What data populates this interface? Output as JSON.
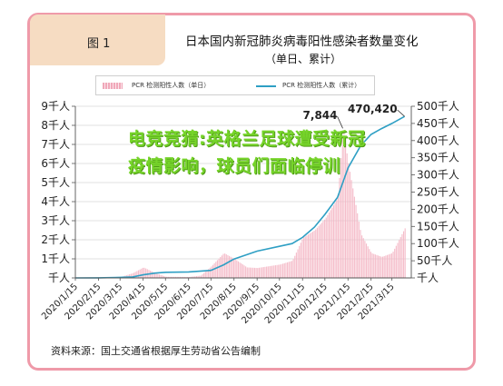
{
  "figure_label": "图 1",
  "chart_data": {
    "type": "bar+line",
    "title": "日本国内新冠肺炎病毒阳性感染者数量变化",
    "subtitle": "（单日、累计）",
    "legend": [
      {
        "label": "PCR 检测阳性人数（单日）",
        "kind": "bar",
        "color": "#f0a8b9"
      },
      {
        "label": "PCR 检测阳性人数（累计）",
        "kind": "line",
        "color": "#2e9fc4"
      }
    ],
    "x_tick_labels": [
      "2020/1/15",
      "2020/2/15",
      "2020/3/15",
      "2020/4/15",
      "2020/5/15",
      "2020/6/15",
      "2020/7/15",
      "2020/8/15",
      "2020/9/15",
      "2020/10/15",
      "2020/11/15",
      "2020/12/15",
      "2021/1/15",
      "2021/2/15",
      "2021/3/15"
    ],
    "left_axis": {
      "tick_labels": [
        "千人",
        "1千人",
        "2千人",
        "3千人",
        "4千人",
        "5千人",
        "6千人",
        "7千人",
        "8千人",
        "9千人"
      ],
      "ylim": [
        0,
        9000
      ]
    },
    "right_axis": {
      "tick_labels": [
        "千人",
        "50千人",
        "100千人",
        "150千人",
        "200千人",
        "250千人",
        "300千人",
        "350千人",
        "400千人",
        "450千人",
        "500千人"
      ],
      "ylim": [
        0,
        500000
      ]
    },
    "daily_series": {
      "name": "PCR 检测阳性人数（单日）",
      "x": [
        "2020/1/15",
        "2020/2/15",
        "2020/3/15",
        "2020/4/1",
        "2020/4/15",
        "2020/5/1",
        "2020/5/15",
        "2020/6/15",
        "2020/7/1",
        "2020/7/15",
        "2020/8/1",
        "2020/8/15",
        "2020/9/1",
        "2020/9/15",
        "2020/10/15",
        "2020/11/1",
        "2020/11/15",
        "2020/12/1",
        "2020/12/15",
        "2021/1/1",
        "2021/1/8",
        "2021/1/15",
        "2021/2/1",
        "2021/2/15",
        "2021/3/1",
        "2021/3/15",
        "2021/4/1"
      ],
      "values": [
        0,
        5,
        40,
        250,
        550,
        250,
        60,
        50,
        120,
        600,
        1300,
        1000,
        550,
        520,
        700,
        900,
        2100,
        2500,
        3100,
        4200,
        7844,
        6000,
        2300,
        1300,
        1100,
        1300,
        2600
      ]
    },
    "cumulative_series": {
      "name": "PCR 检测阳性人数（累计）",
      "x": [
        "2020/1/15",
        "2020/2/15",
        "2020/3/15",
        "2020/4/1",
        "2020/4/15",
        "2020/5/1",
        "2020/5/15",
        "2020/6/15",
        "2020/7/15",
        "2020/8/1",
        "2020/8/15",
        "2020/9/15",
        "2020/10/15",
        "2020/11/1",
        "2020/11/15",
        "2020/12/1",
        "2020/12/15",
        "2021/1/1",
        "2021/1/15",
        "2021/2/1",
        "2021/2/15",
        "2021/3/1",
        "2021/3/15",
        "2021/4/1"
      ],
      "values": [
        0,
        300,
        1500,
        3000,
        9000,
        14000,
        16500,
        17500,
        22000,
        38000,
        55000,
        78000,
        92000,
        100000,
        118000,
        148000,
        185000,
        235000,
        320000,
        385000,
        418000,
        435000,
        450000,
        470420
      ]
    },
    "annotations": [
      {
        "text": "7,844",
        "series": "daily",
        "x": "2021/1/8",
        "y": 7844
      },
      {
        "text": "470,420",
        "series": "cumulative",
        "x": "2021/4/1",
        "y": 470420
      }
    ]
  },
  "overlay_headline": "电竞竞猜:英格兰足球遭受新冠疫情影响，球员们面临停训",
  "source_note": "资料来源：国土交通省根据厚生劳动省公告编制"
}
